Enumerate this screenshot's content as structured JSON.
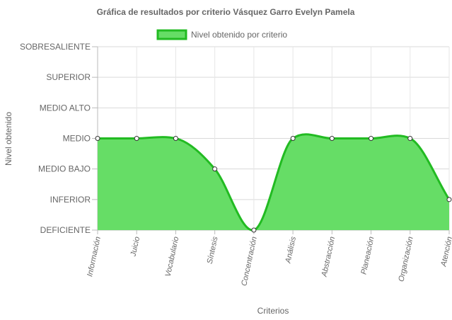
{
  "chart_data": {
    "type": "area",
    "title": "Gráfica de resultados por criterio Vásquez Garro Evelyn Pamela",
    "xlabel": "Criterios",
    "ylabel": "Nivel obtenido",
    "levels": [
      "DEFICIENTE",
      "INFERIOR",
      "MEDIO BAJO",
      "MEDIO",
      "MEDIO ALTO",
      "SUPERIOR",
      "SOBRESALIENTE"
    ],
    "categories": [
      "Información",
      "Juicio",
      "Vocabulario",
      "Síntesis",
      "Concentración",
      "Análisis",
      "Abstracción",
      "Planeación",
      "Organización",
      "Atención"
    ],
    "series": [
      {
        "name": "Nivel obtenido por criterio",
        "values": [
          "MEDIO",
          "MEDIO",
          "MEDIO",
          "MEDIO BAJO",
          "DEFICIENTE",
          "MEDIO",
          "MEDIO",
          "MEDIO",
          "MEDIO",
          "INFERIOR"
        ],
        "fill_color": "#66dd66",
        "line_color": "#22bb22"
      }
    ],
    "legend_position": "top",
    "grid": true
  }
}
